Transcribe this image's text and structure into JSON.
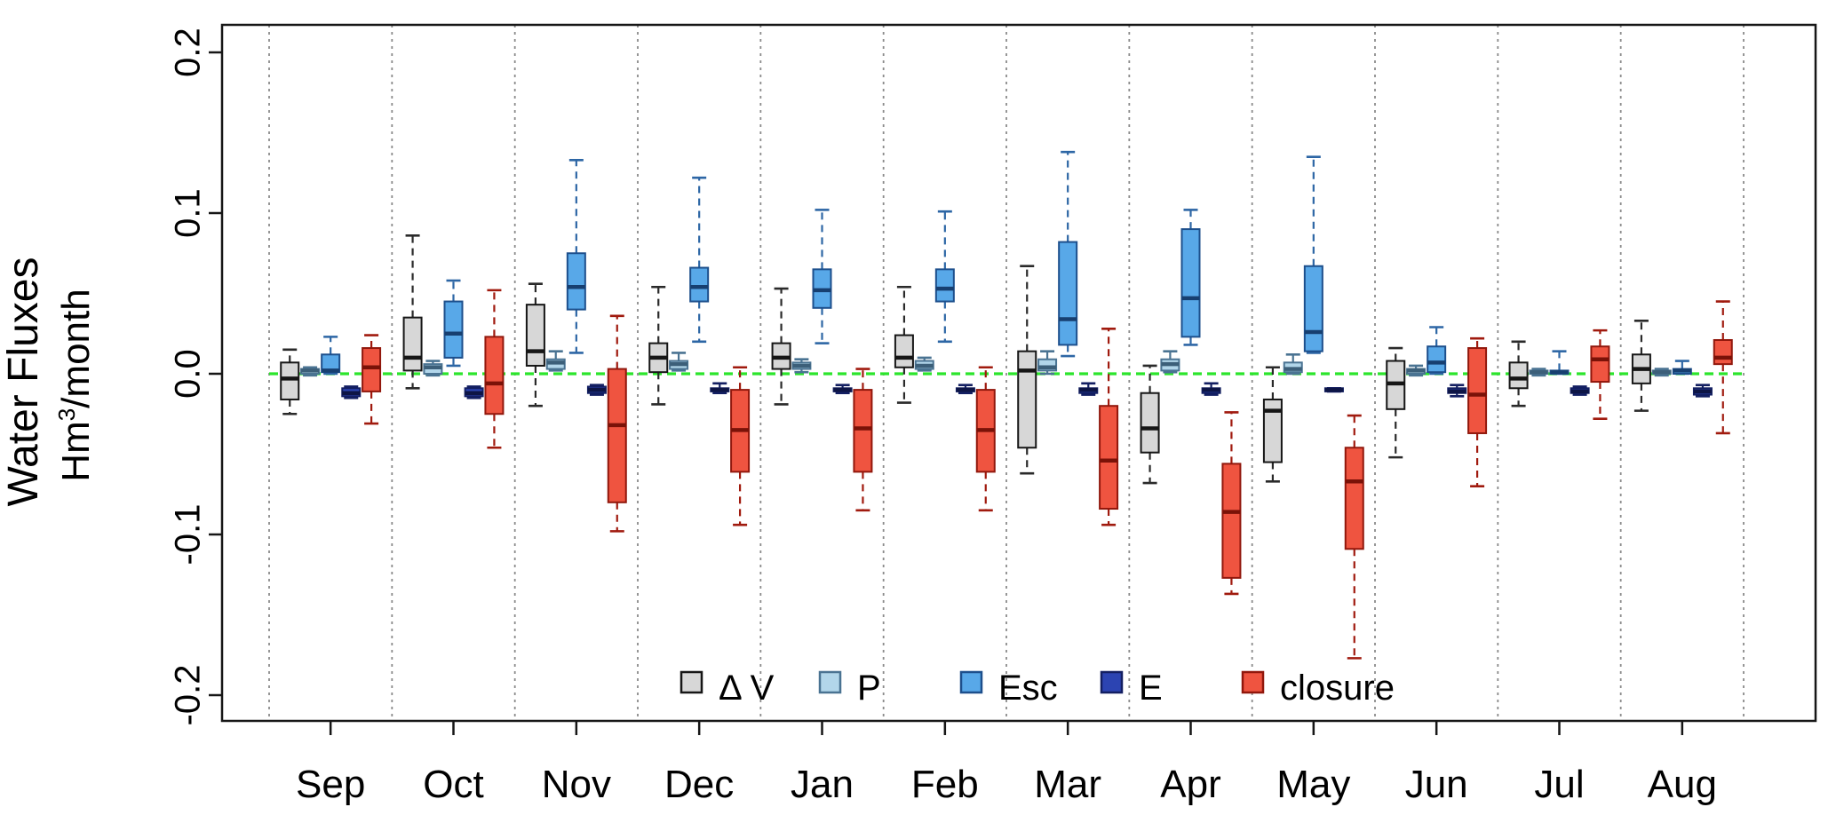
{
  "chart_data": {
    "type": "boxplot",
    "title": "",
    "ylabel_line1": "Water Fluxes",
    "ylabel_line2": {
      "pre": "Hm",
      "sup": "3",
      "post": "/month"
    },
    "categories": [
      "Sep",
      "Oct",
      "Nov",
      "Dec",
      "Jan",
      "Feb",
      "Mar",
      "Apr",
      "May",
      "Jun",
      "Jul",
      "Aug"
    ],
    "yticks": {
      "values": [
        0.2,
        0.1,
        0.0,
        -0.1,
        -0.2
      ],
      "labels": [
        "0.2",
        "0.1",
        "0.0",
        "-0.1",
        "-0.2"
      ]
    },
    "ylim": [
      -0.235,
      0.217
    ],
    "grid": {
      "vertical_separators": true,
      "separator_color": "#8a8a8a"
    },
    "zero_line": {
      "value": 0.0,
      "color": "#2ce52c",
      "style": "dashed"
    },
    "legend": {
      "position": "bottom-inside",
      "labels": [
        "Δ V",
        "P",
        "Esc",
        "E",
        "closure"
      ]
    },
    "series": [
      {
        "name": "Δ V",
        "fill": "#d7d7d7",
        "stroke": "#161616",
        "median_color": "#161616",
        "whisker_color": "#2a2a2a",
        "boxes": [
          [
            -0.025,
            -0.016,
            -0.003,
            0.007,
            0.015
          ],
          [
            -0.009,
            0.002,
            0.01,
            0.035,
            0.086
          ],
          [
            -0.02,
            0.005,
            0.014,
            0.043,
            0.056
          ],
          [
            -0.019,
            0.001,
            0.01,
            0.019,
            0.054
          ],
          [
            -0.019,
            0.003,
            0.01,
            0.019,
            0.053
          ],
          [
            -0.018,
            0.004,
            0.01,
            0.024,
            0.054
          ],
          [
            -0.062,
            -0.046,
            0.002,
            0.014,
            0.067
          ],
          [
            -0.068,
            -0.049,
            -0.034,
            -0.012,
            0.005
          ],
          [
            -0.067,
            -0.055,
            -0.023,
            -0.016,
            0.004
          ],
          [
            -0.052,
            -0.022,
            -0.006,
            0.008,
            0.016
          ],
          [
            -0.02,
            -0.009,
            -0.003,
            0.007,
            0.02
          ],
          [
            -0.023,
            -0.006,
            0.003,
            0.012,
            0.033
          ]
        ]
      },
      {
        "name": "P",
        "fill": "#b2d6ea",
        "stroke": "#4a7392",
        "median_color": "#3c5f79",
        "whisker_color": "#4a7392",
        "boxes": [
          [
            -0.001,
            0.0,
            0.002,
            0.003,
            0.004
          ],
          [
            -0.001,
            0.0,
            0.004,
            0.006,
            0.008
          ],
          [
            0.002,
            0.003,
            0.007,
            0.009,
            0.014
          ],
          [
            0.002,
            0.003,
            0.006,
            0.008,
            0.013
          ],
          [
            0.001,
            0.003,
            0.005,
            0.007,
            0.009
          ],
          [
            0.002,
            0.003,
            0.005,
            0.008,
            0.01
          ],
          [
            0.0,
            0.002,
            0.004,
            0.009,
            0.014
          ],
          [
            0.001,
            0.002,
            0.006,
            0.009,
            0.014
          ],
          [
            0.0,
            0.001,
            0.003,
            0.007,
            0.012
          ],
          [
            -0.001,
            0.0,
            0.002,
            0.003,
            0.005
          ],
          [
            -0.001,
            0.0,
            0.001,
            0.002,
            0.003
          ],
          [
            -0.001,
            0.0,
            0.001,
            0.002,
            0.003
          ]
        ]
      },
      {
        "name": "Esc",
        "fill": "#58a8e8",
        "stroke": "#1d4f8c",
        "median_color": "#173f70",
        "whisker_color": "#2d66a5",
        "boxes": [
          [
            0.0,
            0.001,
            0.002,
            0.012,
            0.023
          ],
          [
            0.005,
            0.01,
            0.025,
            0.045,
            0.058
          ],
          [
            0.013,
            0.04,
            0.054,
            0.075,
            0.133
          ],
          [
            0.02,
            0.045,
            0.054,
            0.066,
            0.122
          ],
          [
            0.019,
            0.041,
            0.052,
            0.065,
            0.102
          ],
          [
            0.02,
            0.045,
            0.053,
            0.065,
            0.101
          ],
          [
            0.011,
            0.018,
            0.034,
            0.082,
            0.138
          ],
          [
            0.018,
            0.023,
            0.047,
            0.09,
            0.102
          ],
          [
            0.013,
            0.014,
            0.026,
            0.067,
            0.135
          ],
          [
            0.0,
            0.001,
            0.007,
            0.017,
            0.029
          ],
          [
            0.0,
            0.0,
            0.001,
            0.002,
            0.014
          ],
          [
            0.0,
            0.0,
            0.002,
            0.003,
            0.008
          ]
        ]
      },
      {
        "name": "E",
        "fill": "#2c44b2",
        "stroke": "#131f62",
        "median_color": "#0d1545",
        "whisker_color": "#131f62",
        "boxes": [
          [
            -0.015,
            -0.014,
            -0.012,
            -0.009,
            -0.008
          ],
          [
            -0.015,
            -0.014,
            -0.012,
            -0.009,
            -0.008
          ],
          [
            -0.013,
            -0.012,
            -0.01,
            -0.008,
            -0.007
          ],
          [
            -0.012,
            -0.011,
            -0.01,
            -0.009,
            -0.006
          ],
          [
            -0.012,
            -0.011,
            -0.01,
            -0.009,
            -0.007
          ],
          [
            -0.012,
            -0.011,
            -0.01,
            -0.009,
            -0.007
          ],
          [
            -0.013,
            -0.012,
            -0.01,
            -0.009,
            -0.006
          ],
          [
            -0.013,
            -0.012,
            -0.01,
            -0.009,
            -0.006
          ],
          [
            -0.011,
            -0.011,
            -0.01,
            -0.009,
            -0.009
          ],
          [
            -0.014,
            -0.012,
            -0.011,
            -0.009,
            -0.007
          ],
          [
            -0.013,
            -0.012,
            -0.011,
            -0.009,
            -0.008
          ],
          [
            -0.014,
            -0.013,
            -0.011,
            -0.009,
            -0.007
          ]
        ]
      },
      {
        "name": "closure",
        "fill": "#ef5440",
        "stroke": "#91170c",
        "median_color": "#7a1208",
        "whisker_color": "#a01a0e",
        "boxes": [
          [
            -0.031,
            -0.011,
            0.004,
            0.016,
            0.024
          ],
          [
            -0.046,
            -0.025,
            -0.006,
            0.023,
            0.052
          ],
          [
            -0.098,
            -0.08,
            -0.032,
            0.003,
            0.036
          ],
          [
            -0.094,
            -0.061,
            -0.035,
            -0.01,
            0.004
          ],
          [
            -0.085,
            -0.061,
            -0.034,
            -0.01,
            0.003
          ],
          [
            -0.085,
            -0.061,
            -0.035,
            -0.01,
            0.004
          ],
          [
            -0.094,
            -0.084,
            -0.054,
            -0.02,
            0.028
          ],
          [
            -0.137,
            -0.127,
            -0.086,
            -0.056,
            -0.024
          ],
          [
            -0.177,
            -0.109,
            -0.067,
            -0.046,
            -0.026
          ],
          [
            -0.07,
            -0.037,
            -0.013,
            0.016,
            0.022
          ],
          [
            -0.028,
            -0.005,
            0.009,
            0.017,
            0.027
          ],
          [
            -0.037,
            0.006,
            0.01,
            0.021,
            0.045
          ]
        ]
      }
    ]
  }
}
